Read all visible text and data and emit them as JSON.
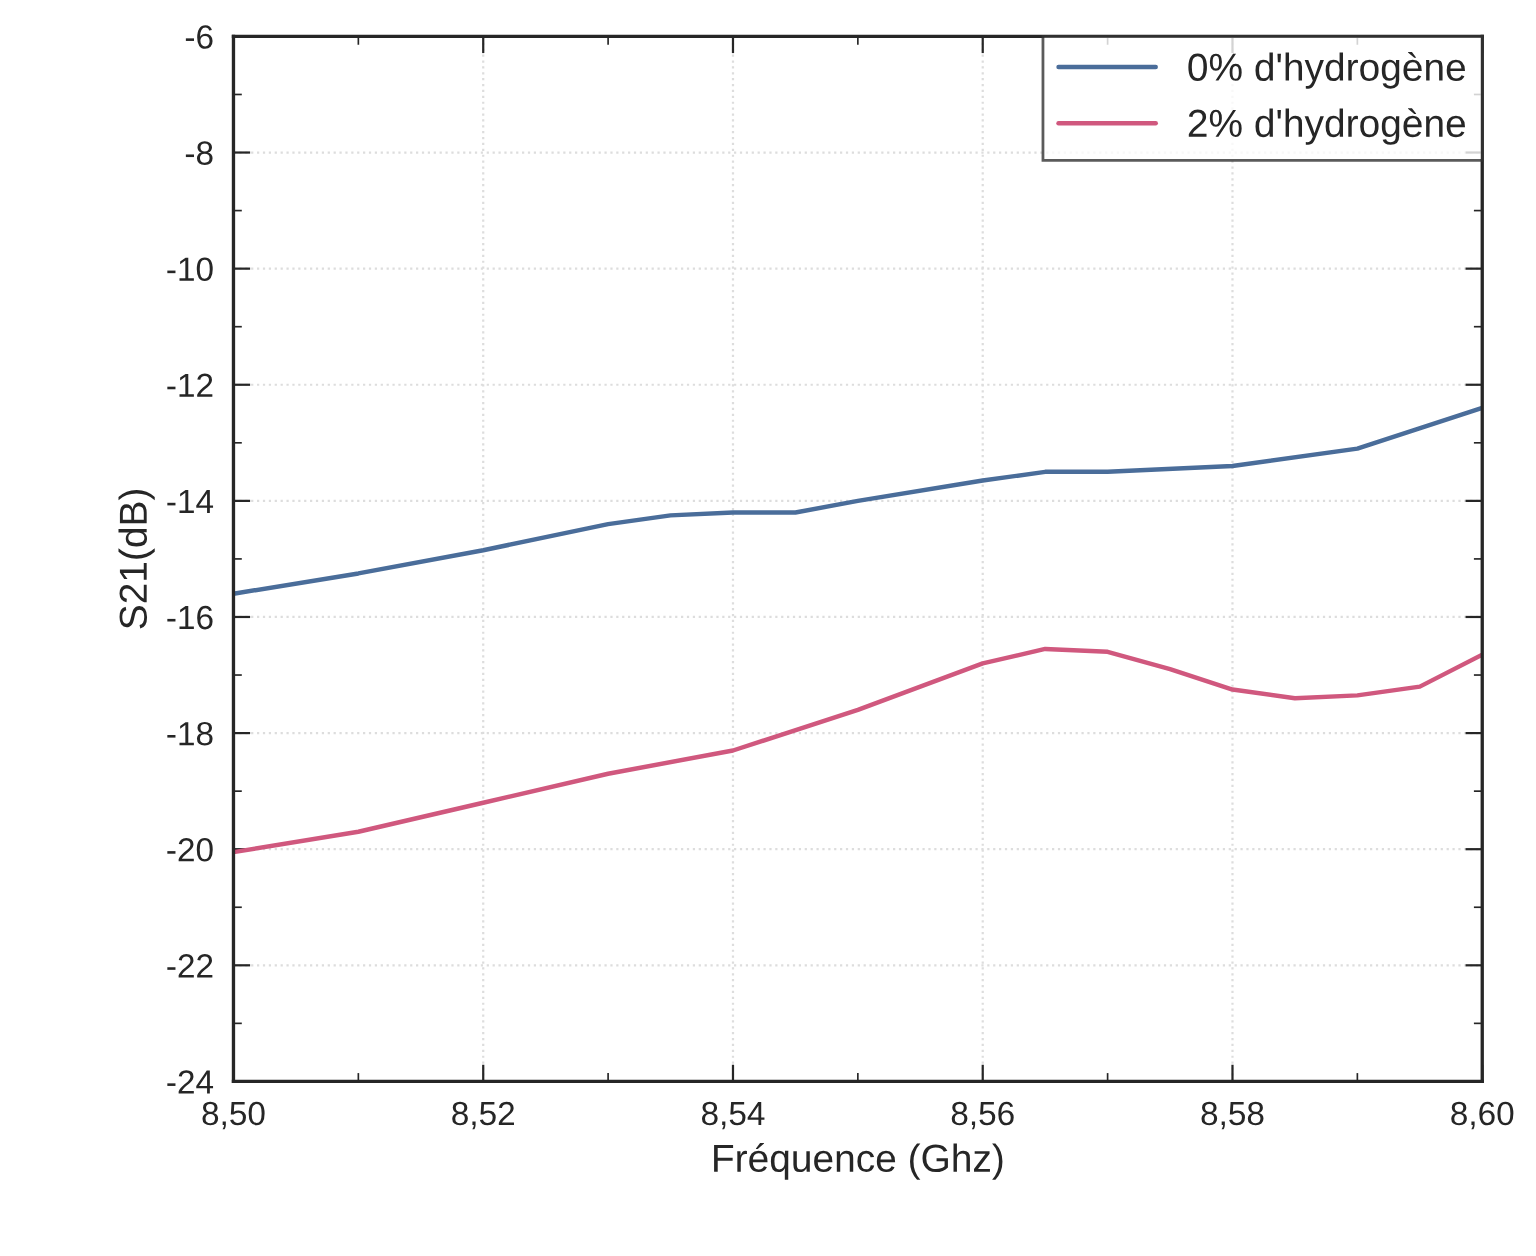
{
  "chart_data": {
    "type": "line",
    "xlabel": "Fréquence (Ghz)",
    "ylabel": "S21(dB)",
    "xlim": [
      8.5,
      8.6
    ],
    "xticks": [
      {
        "value": 8.5,
        "label": "8,50"
      },
      {
        "value": 8.52,
        "label": "8,52"
      },
      {
        "value": 8.54,
        "label": "8,54"
      },
      {
        "value": 8.56,
        "label": "8,56"
      },
      {
        "value": 8.58,
        "label": "8,58"
      },
      {
        "value": 8.6,
        "label": "8,60"
      }
    ],
    "ylim": [
      -24,
      -6
    ],
    "yticks": [
      {
        "value": -24,
        "label": "-24"
      },
      {
        "value": -22,
        "label": "-22"
      },
      {
        "value": -20,
        "label": "-20"
      },
      {
        "value": -18,
        "label": "-18"
      },
      {
        "value": -16,
        "label": "-16"
      },
      {
        "value": -14,
        "label": "-14"
      },
      {
        "value": -12,
        "label": "-12"
      },
      {
        "value": -10,
        "label": "-10"
      },
      {
        "value": -8,
        "label": "-8"
      },
      {
        "value": -6,
        "label": "-6"
      }
    ],
    "grid": true,
    "legend": "top right",
    "line_style": "solid",
    "marker": "none",
    "series": [
      {
        "name": "0% d'hydrogène",
        "color": "#4a6d9a",
        "x": [
          8.5,
          8.51,
          8.52,
          8.53,
          8.535,
          8.54,
          8.545,
          8.55,
          8.56,
          8.565,
          8.57,
          8.58,
          8.59,
          8.6
        ],
        "values": [
          -15.6,
          -15.25,
          -14.85,
          -14.4,
          -14.25,
          -14.2,
          -14.2,
          -14.0,
          -13.65,
          -13.5,
          -13.5,
          -13.4,
          -13.1,
          -12.4
        ]
      },
      {
        "name": "2% d'hydrogène",
        "color": "#d0587e",
        "x": [
          8.5,
          8.51,
          8.52,
          8.53,
          8.54,
          8.55,
          8.56,
          8.565,
          8.57,
          8.575,
          8.58,
          8.585,
          8.59,
          8.595,
          8.6
        ],
        "values": [
          -20.05,
          -19.7,
          -19.2,
          -18.7,
          -18.3,
          -17.6,
          -16.8,
          -16.55,
          -16.6,
          -16.9,
          -17.25,
          -17.4,
          -17.35,
          -17.2,
          -16.65
        ]
      }
    ]
  }
}
